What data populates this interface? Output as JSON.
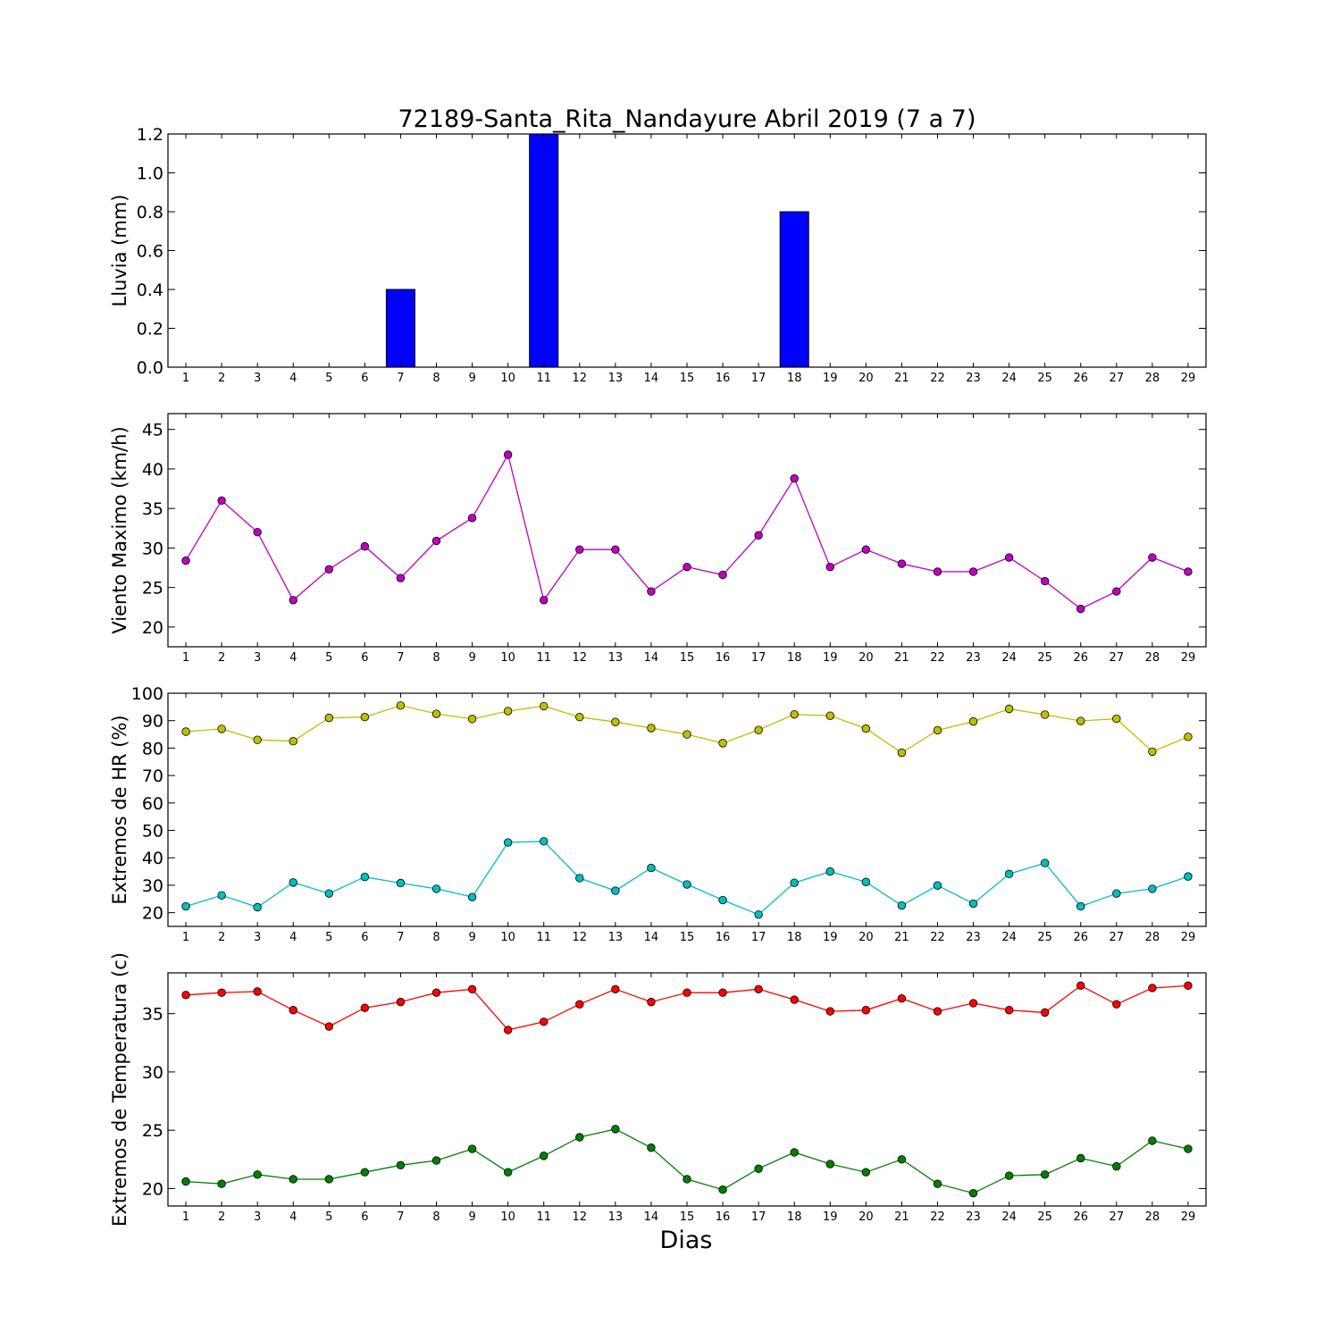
{
  "figure": {
    "title": "72189-Santa_Rita_Nandayure Abril 2019  (7 a 7)",
    "xlabel": "Dias"
  },
  "chart_data": [
    {
      "type": "bar",
      "ylabel": "Lluvia (mm)",
      "ylim": [
        0,
        1.2
      ],
      "yticks": [
        0,
        0.2,
        0.4,
        0.6,
        0.8,
        1.0,
        1.2
      ],
      "ytick_decimals": 1,
      "x": [
        1,
        2,
        3,
        4,
        5,
        6,
        7,
        8,
        9,
        10,
        11,
        12,
        13,
        14,
        15,
        16,
        17,
        18,
        19,
        20,
        21,
        22,
        23,
        24,
        25,
        26,
        27,
        28,
        29
      ],
      "series": [
        {
          "color": "#0000ff",
          "values": [
            0,
            0,
            0,
            0,
            0,
            0,
            0.4,
            0,
            0,
            0,
            1.2,
            0,
            0,
            0,
            0,
            0,
            0,
            0.8,
            0,
            0,
            0,
            0,
            0,
            0,
            0,
            0,
            0,
            0,
            0
          ]
        }
      ]
    },
    {
      "type": "line",
      "ylabel": "Viento Maximo (km/h)",
      "ylim": [
        17.5,
        47
      ],
      "yticks": [
        20,
        25,
        30,
        35,
        40,
        45
      ],
      "ytick_decimals": 0,
      "x": [
        1,
        2,
        3,
        4,
        5,
        6,
        7,
        8,
        9,
        10,
        11,
        12,
        13,
        14,
        15,
        16,
        17,
        18,
        19,
        20,
        21,
        22,
        23,
        24,
        25,
        26,
        27,
        28,
        29
      ],
      "series": [
        {
          "color": "#bf00bf",
          "values": [
            28.4,
            36,
            32,
            23.4,
            27.3,
            30.2,
            26.2,
            30.9,
            33.8,
            41.8,
            23.4,
            29.8,
            29.8,
            24.5,
            27.6,
            26.6,
            31.6,
            38.8,
            27.6,
            29.8,
            28,
            27,
            27,
            28.8,
            25.8,
            22.3,
            24.5,
            28.8,
            27
          ]
        }
      ]
    },
    {
      "type": "line",
      "ylabel": "Extremos de HR (%)",
      "ylim": [
        15,
        100
      ],
      "yticks": [
        20,
        30,
        40,
        50,
        60,
        70,
        80,
        90,
        100
      ],
      "ytick_decimals": 0,
      "x": [
        1,
        2,
        3,
        4,
        5,
        6,
        7,
        8,
        9,
        10,
        11,
        12,
        13,
        14,
        15,
        16,
        17,
        18,
        19,
        20,
        21,
        22,
        23,
        24,
        25,
        26,
        27,
        28,
        29
      ],
      "series": [
        {
          "color": "#bfbf00",
          "values": [
            86,
            87,
            83,
            82.5,
            91,
            91.3,
            95.5,
            92.5,
            90.6,
            93.5,
            95.3,
            91.3,
            89.5,
            87.3,
            85,
            81.8,
            86.6,
            92.3,
            91.8,
            87.1,
            78.3,
            86.5,
            89.7,
            94.3,
            92.2,
            89.9,
            90.7,
            78.7,
            84.1
          ]
        },
        {
          "color": "#00bfbf",
          "values": [
            22.3,
            26.3,
            22,
            31,
            27,
            33,
            30.8,
            28.7,
            25.7,
            45.6,
            46,
            32.6,
            28,
            36.3,
            30.3,
            24.6,
            19.3,
            30.9,
            35,
            31.2,
            22.6,
            29.9,
            23.3,
            34.1,
            38.1,
            22.3,
            27,
            28.7,
            33.2
          ]
        }
      ]
    },
    {
      "type": "line",
      "ylabel": "Extremos de Temperatura (c)",
      "ylim": [
        18.5,
        38.5
      ],
      "yticks": [
        20,
        25,
        30,
        35
      ],
      "ytick_decimals": 0,
      "x": [
        1,
        2,
        3,
        4,
        5,
        6,
        7,
        8,
        9,
        10,
        11,
        12,
        13,
        14,
        15,
        16,
        17,
        18,
        19,
        20,
        21,
        22,
        23,
        24,
        25,
        26,
        27,
        28,
        29
      ],
      "series": [
        {
          "color": "#ff0000",
          "values": [
            36.6,
            36.8,
            36.9,
            35.3,
            33.9,
            35.5,
            36,
            36.8,
            37.1,
            33.6,
            34.3,
            35.8,
            37.1,
            36,
            36.8,
            36.8,
            37.1,
            36.2,
            35.2,
            35.3,
            36.3,
            35.2,
            35.9,
            35.3,
            35.1,
            37.4,
            35.8,
            37.2,
            37.4
          ]
        },
        {
          "color": "#008000",
          "values": [
            20.6,
            20.4,
            21.2,
            20.8,
            20.8,
            21.4,
            22,
            22.4,
            23.4,
            21.4,
            22.8,
            24.4,
            25.1,
            23.5,
            20.8,
            19.9,
            21.7,
            23.1,
            22.1,
            21.4,
            22.5,
            20.4,
            19.6,
            21.1,
            21.2,
            22.6,
            21.9,
            24.1,
            23.4
          ]
        }
      ]
    }
  ]
}
